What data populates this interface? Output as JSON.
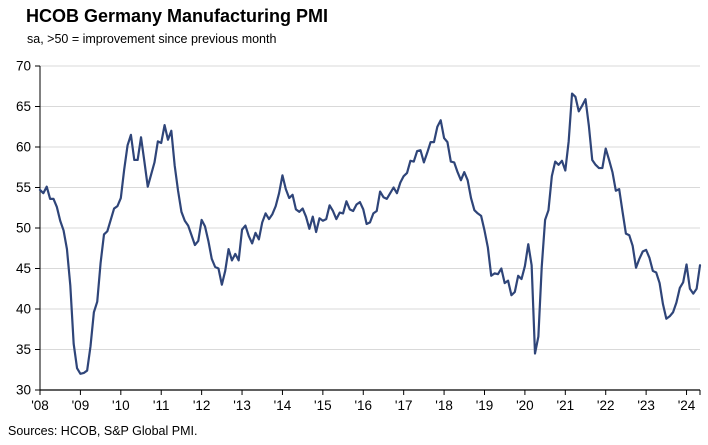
{
  "chart_data": {
    "type": "line",
    "title": "HCOB Germany Manufacturing PMI",
    "subtitle": "sa, >50 = improvement since previous month",
    "source": "Sources: HCOB, S&P Global PMI.",
    "series_name": "Germany Manufacturing PMI (sa)",
    "ylim": [
      30,
      70
    ],
    "ytick_step": 5,
    "x_start": "2008-01",
    "x_end": "2024-05",
    "x_tick_labels": [
      "'08",
      "'09",
      "'10",
      "'11",
      "'12",
      "'13",
      "'14",
      "'15",
      "'16",
      "'17",
      "'18",
      "'19",
      "'20",
      "'21",
      "'22",
      "'23",
      "'24"
    ],
    "line_color": "#2f4579",
    "gridline_color": "#d9d9d9",
    "axis_color": "#000000",
    "legend": "none",
    "grid": "horizontal",
    "values": [
      54.7,
      54.3,
      55.1,
      53.6,
      53.6,
      52.6,
      50.9,
      49.7,
      47.4,
      42.9,
      35.7,
      32.7,
      32.0,
      32.1,
      32.4,
      35.4,
      39.6,
      40.9,
      45.7,
      49.2,
      49.6,
      51.0,
      52.4,
      52.7,
      53.7,
      57.2,
      60.2,
      61.5,
      58.4,
      58.4,
      61.2,
      58.2,
      55.1,
      56.6,
      58.1,
      60.7,
      60.5,
      62.7,
      60.9,
      62.0,
      57.7,
      54.6,
      52.0,
      50.9,
      50.3,
      49.1,
      47.9,
      48.4,
      51.0,
      50.2,
      48.4,
      46.2,
      45.2,
      45.0,
      43.0,
      44.7,
      47.4,
      46.0,
      46.8,
      46.0,
      49.8,
      50.3,
      49.0,
      48.1,
      49.4,
      48.6,
      50.7,
      51.8,
      51.1,
      51.7,
      52.7,
      54.3,
      56.5,
      54.8,
      53.7,
      54.1,
      52.3,
      52.0,
      52.4,
      51.4,
      49.9,
      51.4,
      49.5,
      51.2,
      50.9,
      51.1,
      52.8,
      52.1,
      51.1,
      51.9,
      51.8,
      53.3,
      52.3,
      52.1,
      52.9,
      53.2,
      52.3,
      50.5,
      50.7,
      51.8,
      52.1,
      54.5,
      53.8,
      53.6,
      54.3,
      55.0,
      54.3,
      55.6,
      56.4,
      56.8,
      58.3,
      58.2,
      59.5,
      59.6,
      58.1,
      59.3,
      60.6,
      60.6,
      62.5,
      63.3,
      61.1,
      60.6,
      58.2,
      58.1,
      56.9,
      55.9,
      56.9,
      55.9,
      53.7,
      52.2,
      51.8,
      51.5,
      49.7,
      47.6,
      44.1,
      44.4,
      44.3,
      45.0,
      43.2,
      43.5,
      41.7,
      42.1,
      44.1,
      43.7,
      45.3,
      48.0,
      45.4,
      34.5,
      36.6,
      45.2,
      51.0,
      52.2,
      56.4,
      58.2,
      57.8,
      58.3,
      57.1,
      60.7,
      66.6,
      66.2,
      64.4,
      65.1,
      65.9,
      62.6,
      58.4,
      57.8,
      57.4,
      57.4,
      59.8,
      58.4,
      56.9,
      54.6,
      54.8,
      52.0,
      49.3,
      49.1,
      47.8,
      45.1,
      46.2,
      47.1,
      47.3,
      46.3,
      44.7,
      44.5,
      43.2,
      40.6,
      38.8,
      39.1,
      39.6,
      40.8,
      42.6,
      43.3,
      45.5,
      42.5,
      41.9,
      42.5,
      45.4
    ]
  }
}
